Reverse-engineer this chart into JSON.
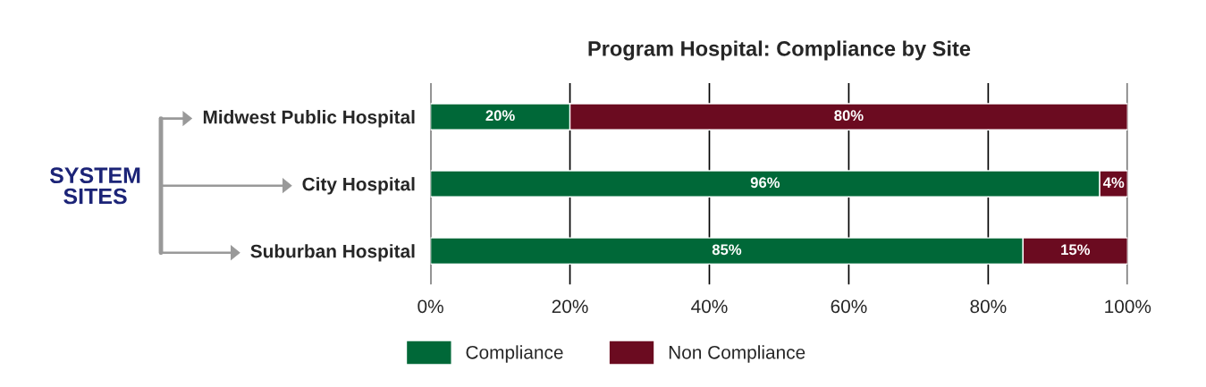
{
  "chart_data": {
    "type": "bar",
    "orientation": "horizontal",
    "stacked": true,
    "title": "Program Hospital: Compliance by Site",
    "categories": [
      "Midwest Public Hospital",
      "City Hospital",
      "Suburban Hospital"
    ],
    "series": [
      {
        "name": "Compliance",
        "color": "#006838",
        "values": [
          20,
          96,
          85
        ],
        "value_labels": [
          "20%",
          "96%",
          "85%"
        ]
      },
      {
        "name": "Non Compliance",
        "color": "#6b0b20",
        "values": [
          80,
          4,
          15
        ],
        "value_labels": [
          "80%",
          "4%",
          "15%"
        ]
      }
    ],
    "xlim": [
      0,
      100
    ],
    "xticks": [
      {
        "value": 0,
        "label": "0%"
      },
      {
        "value": 20,
        "label": "20%"
      },
      {
        "value": 40,
        "label": "40%"
      },
      {
        "value": 60,
        "label": "60%"
      },
      {
        "value": 80,
        "label": "80%"
      },
      {
        "value": 100,
        "label": "100%"
      }
    ],
    "grid": "x",
    "legend": "bottom",
    "annotations": [
      "SYSTEM SITES"
    ]
  }
}
